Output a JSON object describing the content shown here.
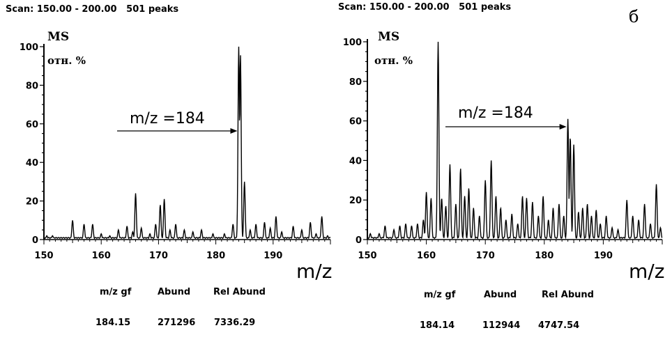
{
  "panel_letter": "б",
  "charts": [
    {
      "scan_label": "Scan: 150.00 - 200.00   501 peaks",
      "ylabel_line1": "MS",
      "ylabel_line2": "отн. %",
      "xlabel": "m/z",
      "annotation": "m/z =184",
      "table": {
        "headers": [
          "m/z gf",
          "Abund",
          "Rel Abund"
        ],
        "values": [
          "184.15",
          "271296",
          "7336.29"
        ]
      }
    },
    {
      "scan_label": "Scan: 150.00 - 200.00   501 peaks",
      "ylabel_line1": "MS",
      "ylabel_line2": "отн. %",
      "xlabel": "m/z",
      "annotation": "m/z =184",
      "table": {
        "headers": [
          "m/z gf",
          "Abund",
          "Rel Abund"
        ],
        "values": [
          "184.14",
          "112944",
          "4747.54"
        ]
      }
    }
  ],
  "chart_data": [
    {
      "type": "line",
      "title": "",
      "xlabel": "m/z",
      "ylabel": "MS отн. %",
      "xlim": [
        150,
        200
      ],
      "ylim": [
        0,
        100
      ],
      "xticks": [
        150,
        160,
        170,
        180,
        190
      ],
      "yticks": [
        0,
        20,
        40,
        60,
        80,
        100
      ],
      "series": [
        {
          "peaks": [
            {
              "x": 150.5,
              "y": 2
            },
            {
              "x": 151.5,
              "y": 2
            },
            {
              "x": 152.5,
              "y": 1
            },
            {
              "x": 155.0,
              "y": 10
            },
            {
              "x": 157.0,
              "y": 8
            },
            {
              "x": 158.5,
              "y": 8
            },
            {
              "x": 160.0,
              "y": 3
            },
            {
              "x": 161.5,
              "y": 2
            },
            {
              "x": 163.0,
              "y": 5
            },
            {
              "x": 164.5,
              "y": 7
            },
            {
              "x": 165.5,
              "y": 4
            },
            {
              "x": 166.0,
              "y": 24
            },
            {
              "x": 167.0,
              "y": 6
            },
            {
              "x": 168.5,
              "y": 3
            },
            {
              "x": 169.5,
              "y": 8
            },
            {
              "x": 170.3,
              "y": 18
            },
            {
              "x": 171.0,
              "y": 21
            },
            {
              "x": 172.0,
              "y": 5
            },
            {
              "x": 173.0,
              "y": 8
            },
            {
              "x": 174.5,
              "y": 5
            },
            {
              "x": 176.0,
              "y": 4
            },
            {
              "x": 177.5,
              "y": 5
            },
            {
              "x": 179.5,
              "y": 3
            },
            {
              "x": 181.5,
              "y": 3
            },
            {
              "x": 183.0,
              "y": 8
            },
            {
              "x": 184.0,
              "y": 100
            },
            {
              "x": 184.3,
              "y": 96
            },
            {
              "x": 185.0,
              "y": 30
            },
            {
              "x": 186.0,
              "y": 5
            },
            {
              "x": 187.0,
              "y": 8
            },
            {
              "x": 188.5,
              "y": 9
            },
            {
              "x": 189.5,
              "y": 6
            },
            {
              "x": 190.5,
              "y": 12
            },
            {
              "x": 191.5,
              "y": 4
            },
            {
              "x": 193.5,
              "y": 7
            },
            {
              "x": 195.0,
              "y": 5
            },
            {
              "x": 196.5,
              "y": 9
            },
            {
              "x": 197.5,
              "y": 3
            },
            {
              "x": 198.5,
              "y": 12
            },
            {
              "x": 199.5,
              "y": 2
            }
          ]
        }
      ]
    },
    {
      "type": "line",
      "title": "",
      "xlabel": "m/z",
      "ylabel": "MS отн. %",
      "xlim": [
        150,
        200
      ],
      "ylim": [
        0,
        100
      ],
      "xticks": [
        150,
        160,
        170,
        180,
        190
      ],
      "yticks": [
        0,
        20,
        40,
        60,
        80,
        100
      ],
      "series": [
        {
          "peaks": [
            {
              "x": 150.5,
              "y": 3
            },
            {
              "x": 152.0,
              "y": 3
            },
            {
              "x": 153.0,
              "y": 7
            },
            {
              "x": 154.5,
              "y": 5
            },
            {
              "x": 155.5,
              "y": 7
            },
            {
              "x": 156.5,
              "y": 8
            },
            {
              "x": 157.5,
              "y": 7
            },
            {
              "x": 158.5,
              "y": 8
            },
            {
              "x": 159.5,
              "y": 10
            },
            {
              "x": 160.0,
              "y": 24
            },
            {
              "x": 160.8,
              "y": 21
            },
            {
              "x": 162.0,
              "y": 100
            },
            {
              "x": 162.6,
              "y": 21
            },
            {
              "x": 163.3,
              "y": 17
            },
            {
              "x": 164.0,
              "y": 38
            },
            {
              "x": 165.0,
              "y": 18
            },
            {
              "x": 165.8,
              "y": 36
            },
            {
              "x": 166.5,
              "y": 22
            },
            {
              "x": 167.2,
              "y": 26
            },
            {
              "x": 168.0,
              "y": 16
            },
            {
              "x": 169.0,
              "y": 12
            },
            {
              "x": 170.0,
              "y": 30
            },
            {
              "x": 171.0,
              "y": 40
            },
            {
              "x": 171.8,
              "y": 22
            },
            {
              "x": 172.6,
              "y": 16
            },
            {
              "x": 173.5,
              "y": 10
            },
            {
              "x": 174.5,
              "y": 13
            },
            {
              "x": 175.5,
              "y": 8
            },
            {
              "x": 176.3,
              "y": 22
            },
            {
              "x": 177.0,
              "y": 21
            },
            {
              "x": 178.0,
              "y": 19
            },
            {
              "x": 179.0,
              "y": 12
            },
            {
              "x": 179.8,
              "y": 22
            },
            {
              "x": 180.7,
              "y": 10
            },
            {
              "x": 181.5,
              "y": 16
            },
            {
              "x": 182.5,
              "y": 18
            },
            {
              "x": 183.3,
              "y": 12
            },
            {
              "x": 184.0,
              "y": 61
            },
            {
              "x": 184.4,
              "y": 52
            },
            {
              "x": 185.0,
              "y": 48
            },
            {
              "x": 185.8,
              "y": 14
            },
            {
              "x": 186.5,
              "y": 16
            },
            {
              "x": 187.3,
              "y": 18
            },
            {
              "x": 188.0,
              "y": 12
            },
            {
              "x": 188.8,
              "y": 15
            },
            {
              "x": 189.5,
              "y": 8
            },
            {
              "x": 190.5,
              "y": 12
            },
            {
              "x": 191.5,
              "y": 6
            },
            {
              "x": 192.5,
              "y": 5
            },
            {
              "x": 194.0,
              "y": 20
            },
            {
              "x": 195.0,
              "y": 12
            },
            {
              "x": 196.0,
              "y": 10
            },
            {
              "x": 197.0,
              "y": 18
            },
            {
              "x": 198.0,
              "y": 8
            },
            {
              "x": 199.0,
              "y": 28
            },
            {
              "x": 199.7,
              "y": 6
            }
          ]
        }
      ]
    }
  ]
}
